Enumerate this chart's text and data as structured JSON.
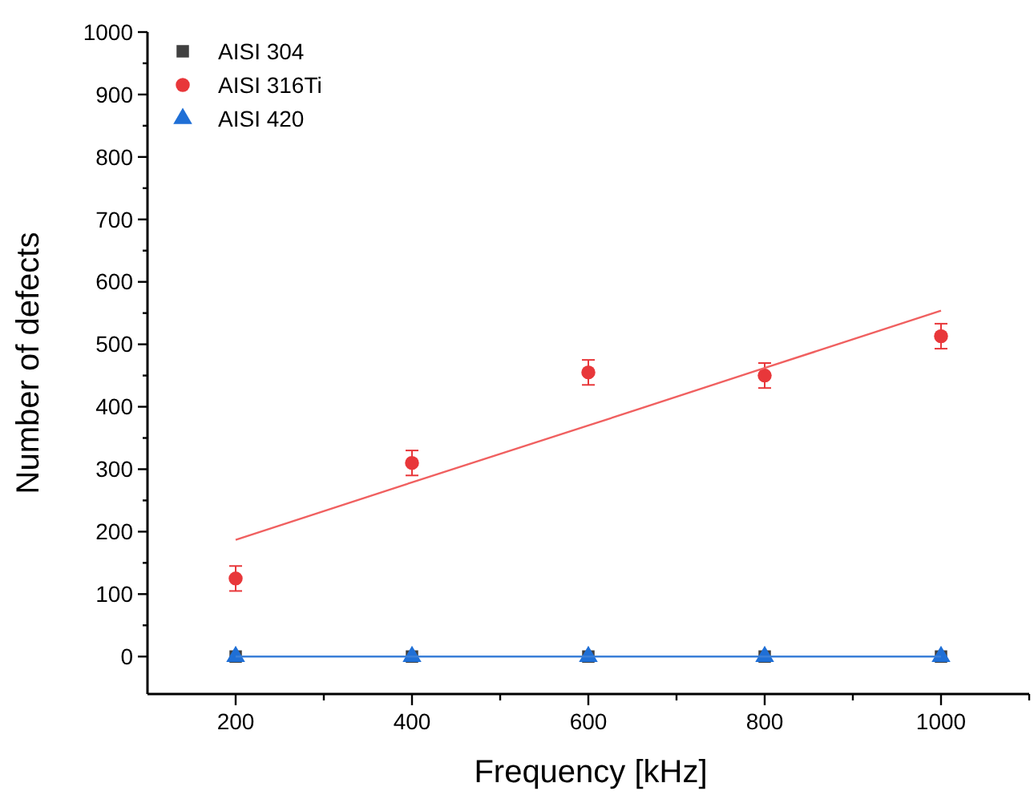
{
  "chart_data": {
    "type": "scatter",
    "xlabel": "Frequency [kHz]",
    "ylabel": "Number of defects",
    "x": [
      200,
      400,
      600,
      800,
      1000
    ],
    "series": [
      {
        "name": "AISI 304",
        "color": "#404040",
        "marker": "square",
        "values": [
          0,
          0,
          0,
          0,
          0
        ]
      },
      {
        "name": "AISI 316Ti",
        "color": "#e8373a",
        "marker": "circle",
        "values": [
          125,
          310,
          455,
          450,
          513
        ],
        "errors": [
          20,
          20,
          20,
          20,
          20
        ]
      },
      {
        "name": "AISI 420",
        "color": "#1f6fd6",
        "marker": "triangle",
        "values": [
          0,
          0,
          0,
          0,
          0
        ]
      },
      {
        "type": "line",
        "color": "#f06060",
        "values": [
          187,
          279,
          370,
          462,
          554
        ]
      },
      {
        "type": "line",
        "color": "#3a7fd8",
        "values": [
          0,
          0,
          0,
          0,
          0
        ]
      }
    ],
    "xlim": [
      100,
      1100
    ],
    "xticks": [
      200,
      {
        "value": 300,
        "label": null
      },
      400,
      {
        "value": 500,
        "label": null
      },
      600,
      {
        "value": 700,
        "label": null
      },
      800,
      {
        "value": 900,
        "label": null
      },
      1000,
      {
        "value": 1100,
        "label": null
      }
    ],
    "ylim": [
      -60,
      1000
    ],
    "yticks": [
      0,
      {
        "value": 50,
        "label": null
      },
      100,
      {
        "value": 150,
        "label": null
      },
      200,
      {
        "value": 250,
        "label": null
      },
      300,
      {
        "value": 350,
        "label": null
      },
      400,
      {
        "value": 450,
        "label": null
      },
      500,
      {
        "value": 550,
        "label": null
      },
      600,
      {
        "value": 650,
        "label": null
      },
      700,
      {
        "value": 750,
        "label": null
      },
      800,
      {
        "value": 850,
        "label": null
      },
      900,
      {
        "value": 950,
        "label": null
      },
      1000
    ],
    "legend": "top left",
    "grid": false
  }
}
